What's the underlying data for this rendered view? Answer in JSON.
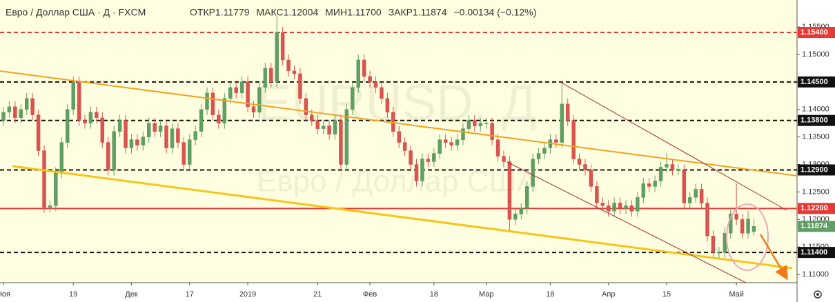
{
  "chart_data": {
    "type": "candlestick",
    "header": {
      "title": "Евро / Доллар США · Д · FXCM",
      "stats": [
        "ОТКР1.11779",
        "МАКС1.12004",
        "МИН1.11700",
        "ЗАКР1.11874",
        "−0.00134 (−0.12%)"
      ]
    },
    "watermark": {
      "symbol": "EURUSD, Д",
      "name": "Евро / Доллар США"
    },
    "up_color": "#5f9f63",
    "down_color": "#d9534f",
    "background": "#fffee0",
    "ylim": [
      1.1085,
      1.1599
    ],
    "yticks": [
      {
        "value": 1.155,
        "label": "1.15500"
      },
      {
        "value": 1.15,
        "label": "1.15000"
      },
      {
        "value": 1.145,
        "label": "1.14500"
      },
      {
        "value": 1.14,
        "label": "1.14000"
      },
      {
        "value": 1.135,
        "label": "1.13500"
      },
      {
        "value": 1.13,
        "label": "1.13000"
      },
      {
        "value": 1.125,
        "label": "1.12500"
      },
      {
        "value": 1.12,
        "label": "1.12000"
      },
      {
        "value": 1.115,
        "label": "1.11500"
      },
      {
        "value": 1.11,
        "label": "1.11000"
      }
    ],
    "xticks": [
      {
        "value": 0,
        "label": "Ноя"
      },
      {
        "value": 12,
        "label": "19"
      },
      {
        "value": 22,
        "label": "Дек"
      },
      {
        "value": 32,
        "label": "17"
      },
      {
        "value": 42,
        "label": "2019"
      },
      {
        "value": 54,
        "label": "21"
      },
      {
        "value": 63,
        "label": "Фев"
      },
      {
        "value": 74,
        "label": "18"
      },
      {
        "value": 83,
        "label": "Мар"
      },
      {
        "value": 94,
        "label": "18"
      },
      {
        "value": 104,
        "label": "Апр"
      },
      {
        "value": 114,
        "label": "15"
      },
      {
        "value": 126,
        "label": "Май"
      }
    ],
    "levels": [
      {
        "value": 1.154,
        "label": "1.15400",
        "color": "#e53935",
        "dashed": true
      },
      {
        "value": 1.145,
        "label": "1.14500",
        "color": "#111111",
        "dashed": true
      },
      {
        "value": 1.138,
        "label": "1.13800",
        "color": "#111111",
        "dashed": true
      },
      {
        "value": 1.129,
        "label": "1.12900",
        "color": "#111111",
        "dashed": true
      },
      {
        "value": 1.122,
        "label": "1.12200",
        "color": "#e53935",
        "dashed": false
      },
      {
        "value": 1.114,
        "label": "1.11400",
        "color": "#111111",
        "dashed": true
      }
    ],
    "candles": [
      [
        1.138,
        1.1405,
        1.137,
        1.1395
      ],
      [
        1.1395,
        1.1415,
        1.1385,
        1.1405
      ],
      [
        1.1405,
        1.1415,
        1.1375,
        1.1385
      ],
      [
        1.1385,
        1.141,
        1.1375,
        1.14
      ],
      [
        1.14,
        1.143,
        1.139,
        1.142
      ],
      [
        1.142,
        1.143,
        1.138,
        1.139
      ],
      [
        1.139,
        1.14,
        1.1315,
        1.1325
      ],
      [
        1.1325,
        1.1335,
        1.1212,
        1.1222
      ],
      [
        1.1222,
        1.1235,
        1.1212,
        1.1225
      ],
      [
        1.1225,
        1.1295,
        1.1215,
        1.1285
      ],
      [
        1.1285,
        1.135,
        1.1275,
        1.134
      ],
      [
        1.134,
        1.141,
        1.133,
        1.14
      ],
      [
        1.14,
        1.146,
        1.139,
        1.145
      ],
      [
        1.145,
        1.146,
        1.137,
        1.138
      ],
      [
        1.138,
        1.139,
        1.1365,
        1.1375
      ],
      [
        1.1375,
        1.1405,
        1.1365,
        1.1395
      ],
      [
        1.1395,
        1.1405,
        1.1375,
        1.1385
      ],
      [
        1.1385,
        1.1395,
        1.133,
        1.134
      ],
      [
        1.134,
        1.135,
        1.128,
        1.129
      ],
      [
        1.129,
        1.137,
        1.128,
        1.136
      ],
      [
        1.136,
        1.139,
        1.135,
        1.138
      ],
      [
        1.138,
        1.139,
        1.132,
        1.133
      ],
      [
        1.133,
        1.1355,
        1.132,
        1.1345
      ],
      [
        1.1345,
        1.1355,
        1.1325,
        1.1335
      ],
      [
        1.1335,
        1.136,
        1.1325,
        1.135
      ],
      [
        1.135,
        1.1385,
        1.134,
        1.1375
      ],
      [
        1.1375,
        1.1385,
        1.135,
        1.136
      ],
      [
        1.136,
        1.138,
        1.135,
        1.137
      ],
      [
        1.137,
        1.138,
        1.132,
        1.133
      ],
      [
        1.133,
        1.1375,
        1.132,
        1.1365
      ],
      [
        1.1365,
        1.1375,
        1.133,
        1.134
      ],
      [
        1.134,
        1.135,
        1.129,
        1.13
      ],
      [
        1.13,
        1.1355,
        1.129,
        1.1345
      ],
      [
        1.1345,
        1.137,
        1.1335,
        1.136
      ],
      [
        1.136,
        1.141,
        1.135,
        1.14
      ],
      [
        1.14,
        1.144,
        1.139,
        1.143
      ],
      [
        1.143,
        1.144,
        1.138,
        1.139
      ],
      [
        1.139,
        1.14,
        1.1365,
        1.1375
      ],
      [
        1.1375,
        1.143,
        1.1365,
        1.142
      ],
      [
        1.142,
        1.145,
        1.141,
        1.144
      ],
      [
        1.144,
        1.145,
        1.142,
        1.143
      ],
      [
        1.143,
        1.146,
        1.142,
        1.145
      ],
      [
        1.145,
        1.146,
        1.1395,
        1.1405
      ],
      [
        1.1405,
        1.1415,
        1.1385,
        1.1395
      ],
      [
        1.1395,
        1.145,
        1.1385,
        1.144
      ],
      [
        1.144,
        1.1485,
        1.143,
        1.1475
      ],
      [
        1.1475,
        1.1485,
        1.144,
        1.145
      ],
      [
        1.145,
        1.157,
        1.144,
        1.154
      ],
      [
        1.154,
        1.155,
        1.148,
        1.149
      ],
      [
        1.149,
        1.15,
        1.146,
        1.147
      ],
      [
        1.147,
        1.148,
        1.1455,
        1.1465
      ],
      [
        1.1465,
        1.1475,
        1.141,
        1.142
      ],
      [
        1.142,
        1.143,
        1.138,
        1.139
      ],
      [
        1.139,
        1.14,
        1.137,
        1.138
      ],
      [
        1.138,
        1.139,
        1.1355,
        1.1365
      ],
      [
        1.1365,
        1.138,
        1.1355,
        1.137
      ],
      [
        1.137,
        1.138,
        1.1345,
        1.1355
      ],
      [
        1.1355,
        1.139,
        1.1345,
        1.138
      ],
      [
        1.138,
        1.139,
        1.129,
        1.13
      ],
      [
        1.13,
        1.141,
        1.129,
        1.14
      ],
      [
        1.14,
        1.145,
        1.139,
        1.144
      ],
      [
        1.144,
        1.15,
        1.143,
        1.149
      ],
      [
        1.149,
        1.15,
        1.145,
        1.146
      ],
      [
        1.146,
        1.147,
        1.144,
        1.145
      ],
      [
        1.145,
        1.146,
        1.143,
        1.144
      ],
      [
        1.144,
        1.145,
        1.141,
        1.142
      ],
      [
        1.142,
        1.143,
        1.1385,
        1.1395
      ],
      [
        1.1395,
        1.1405,
        1.135,
        1.136
      ],
      [
        1.136,
        1.137,
        1.133,
        1.134
      ],
      [
        1.134,
        1.135,
        1.1315,
        1.1325
      ],
      [
        1.1325,
        1.1335,
        1.129,
        1.13
      ],
      [
        1.13,
        1.131,
        1.126,
        1.127
      ],
      [
        1.127,
        1.132,
        1.126,
        1.131
      ],
      [
        1.131,
        1.132,
        1.1295,
        1.1305
      ],
      [
        1.1305,
        1.133,
        1.1295,
        1.132
      ],
      [
        1.132,
        1.1355,
        1.131,
        1.1345
      ],
      [
        1.1345,
        1.1355,
        1.133,
        1.134
      ],
      [
        1.134,
        1.135,
        1.1325,
        1.1335
      ],
      [
        1.1335,
        1.1355,
        1.1325,
        1.1345
      ],
      [
        1.1345,
        1.1375,
        1.1335,
        1.1365
      ],
      [
        1.1365,
        1.139,
        1.1355,
        1.138
      ],
      [
        1.138,
        1.139,
        1.136,
        1.137
      ],
      [
        1.137,
        1.1385,
        1.136,
        1.1375
      ],
      [
        1.1375,
        1.1385,
        1.1365,
        1.1375
      ],
      [
        1.1375,
        1.1385,
        1.1335,
        1.1345
      ],
      [
        1.1345,
        1.1355,
        1.1305,
        1.1315
      ],
      [
        1.1315,
        1.1325,
        1.1295,
        1.1305
      ],
      [
        1.1305,
        1.1315,
        1.118,
        1.12
      ],
      [
        1.12,
        1.122,
        1.119,
        1.121
      ],
      [
        1.121,
        1.123,
        1.12,
        1.122
      ],
      [
        1.122,
        1.127,
        1.121,
        1.126
      ],
      [
        1.126,
        1.132,
        1.125,
        1.131
      ],
      [
        1.131,
        1.133,
        1.13,
        1.132
      ],
      [
        1.132,
        1.134,
        1.131,
        1.133
      ],
      [
        1.133,
        1.1355,
        1.132,
        1.1345
      ],
      [
        1.1345,
        1.1355,
        1.133,
        1.134
      ],
      [
        1.134,
        1.145,
        1.133,
        1.141
      ],
      [
        1.141,
        1.142,
        1.137,
        1.138
      ],
      [
        1.138,
        1.139,
        1.13,
        1.131
      ],
      [
        1.131,
        1.132,
        1.129,
        1.13
      ],
      [
        1.13,
        1.131,
        1.128,
        1.129
      ],
      [
        1.129,
        1.13,
        1.125,
        1.126
      ],
      [
        1.126,
        1.127,
        1.122,
        1.123
      ],
      [
        1.123,
        1.124,
        1.1215,
        1.1225
      ],
      [
        1.1225,
        1.1235,
        1.1205,
        1.1215
      ],
      [
        1.1215,
        1.124,
        1.1205,
        1.123
      ],
      [
        1.123,
        1.124,
        1.121,
        1.122
      ],
      [
        1.122,
        1.1235,
        1.121,
        1.1225
      ],
      [
        1.1225,
        1.1235,
        1.1205,
        1.1215
      ],
      [
        1.1215,
        1.125,
        1.1205,
        1.124
      ],
      [
        1.124,
        1.1275,
        1.123,
        1.1265
      ],
      [
        1.1265,
        1.1275,
        1.125,
        1.126
      ],
      [
        1.126,
        1.128,
        1.125,
        1.127
      ],
      [
        1.127,
        1.1305,
        1.126,
        1.1295
      ],
      [
        1.1295,
        1.132,
        1.1285,
        1.13
      ],
      [
        1.13,
        1.131,
        1.128,
        1.129
      ],
      [
        1.129,
        1.13,
        1.128,
        1.129
      ],
      [
        1.129,
        1.13,
        1.122,
        1.123
      ],
      [
        1.123,
        1.125,
        1.122,
        1.124
      ],
      [
        1.124,
        1.1265,
        1.123,
        1.1255
      ],
      [
        1.1255,
        1.1265,
        1.122,
        1.123
      ],
      [
        1.123,
        1.124,
        1.116,
        1.117
      ],
      [
        1.117,
        1.118,
        1.113,
        1.114
      ],
      [
        1.114,
        1.115,
        1.113,
        1.114
      ],
      [
        1.114,
        1.1185,
        1.113,
        1.1175
      ],
      [
        1.1175,
        1.122,
        1.1165,
        1.121
      ],
      [
        1.121,
        1.1265,
        1.119,
        1.12
      ],
      [
        1.12,
        1.121,
        1.1165,
        1.1175
      ],
      [
        1.1175,
        1.1215,
        1.1165,
        1.1201
      ],
      [
        1.11779,
        1.12004,
        1.117,
        1.11874
      ]
    ]
  }
}
